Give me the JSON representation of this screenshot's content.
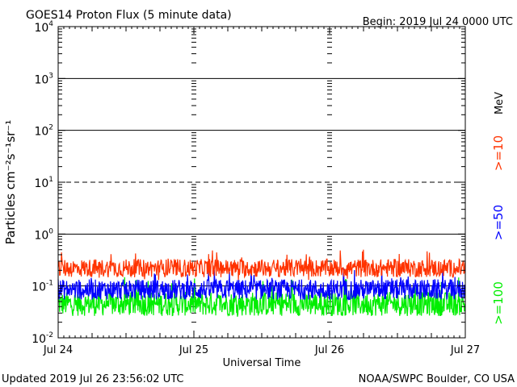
{
  "chart_data": {
    "type": "line",
    "title": "GOES14 Proton Flux (5 minute data)",
    "begin_label": "Begin: 2019 Jul 24 0000 UTC",
    "xlabel": "Universal Time",
    "ylabel": "Particles cm⁻²s⁻¹sr⁻¹",
    "y_scale": "log",
    "ylim": [
      0.01,
      10000
    ],
    "xlim": [
      "2019-07-24 00:00",
      "2019-07-27 00:00"
    ],
    "x_ticks": [
      "Jul 24",
      "Jul 25",
      "Jul 26",
      "Jul 27"
    ],
    "y_ticks": [
      {
        "base": "10",
        "exp": "-2"
      },
      {
        "base": "10",
        "exp": "-1"
      },
      {
        "base": "10",
        "exp": "0"
      },
      {
        "base": "10",
        "exp": "1"
      },
      {
        "base": "10",
        "exp": "2"
      },
      {
        "base": "10",
        "exp": "3"
      },
      {
        "base": "10",
        "exp": "4"
      }
    ],
    "unit_label": "MeV",
    "series": [
      {
        "name": ">=10",
        "color": "#ff3300",
        "range": [
          0.13,
          0.5
        ],
        "typical": 0.22
      },
      {
        "name": ">=50",
        "color": "#0000ff",
        "range": [
          0.055,
          0.25
        ],
        "typical": 0.085
      },
      {
        "name": ">=100",
        "color": "#00ee00",
        "range": [
          0.025,
          0.15
        ],
        "typical": 0.045
      }
    ],
    "thresholds": [
      {
        "value": 10,
        "style": "dashed"
      }
    ]
  },
  "footer": {
    "updated": "Updated 2019 Jul 26 23:56:02 UTC",
    "credit": "NOAA/SWPC Boulder, CO USA"
  }
}
